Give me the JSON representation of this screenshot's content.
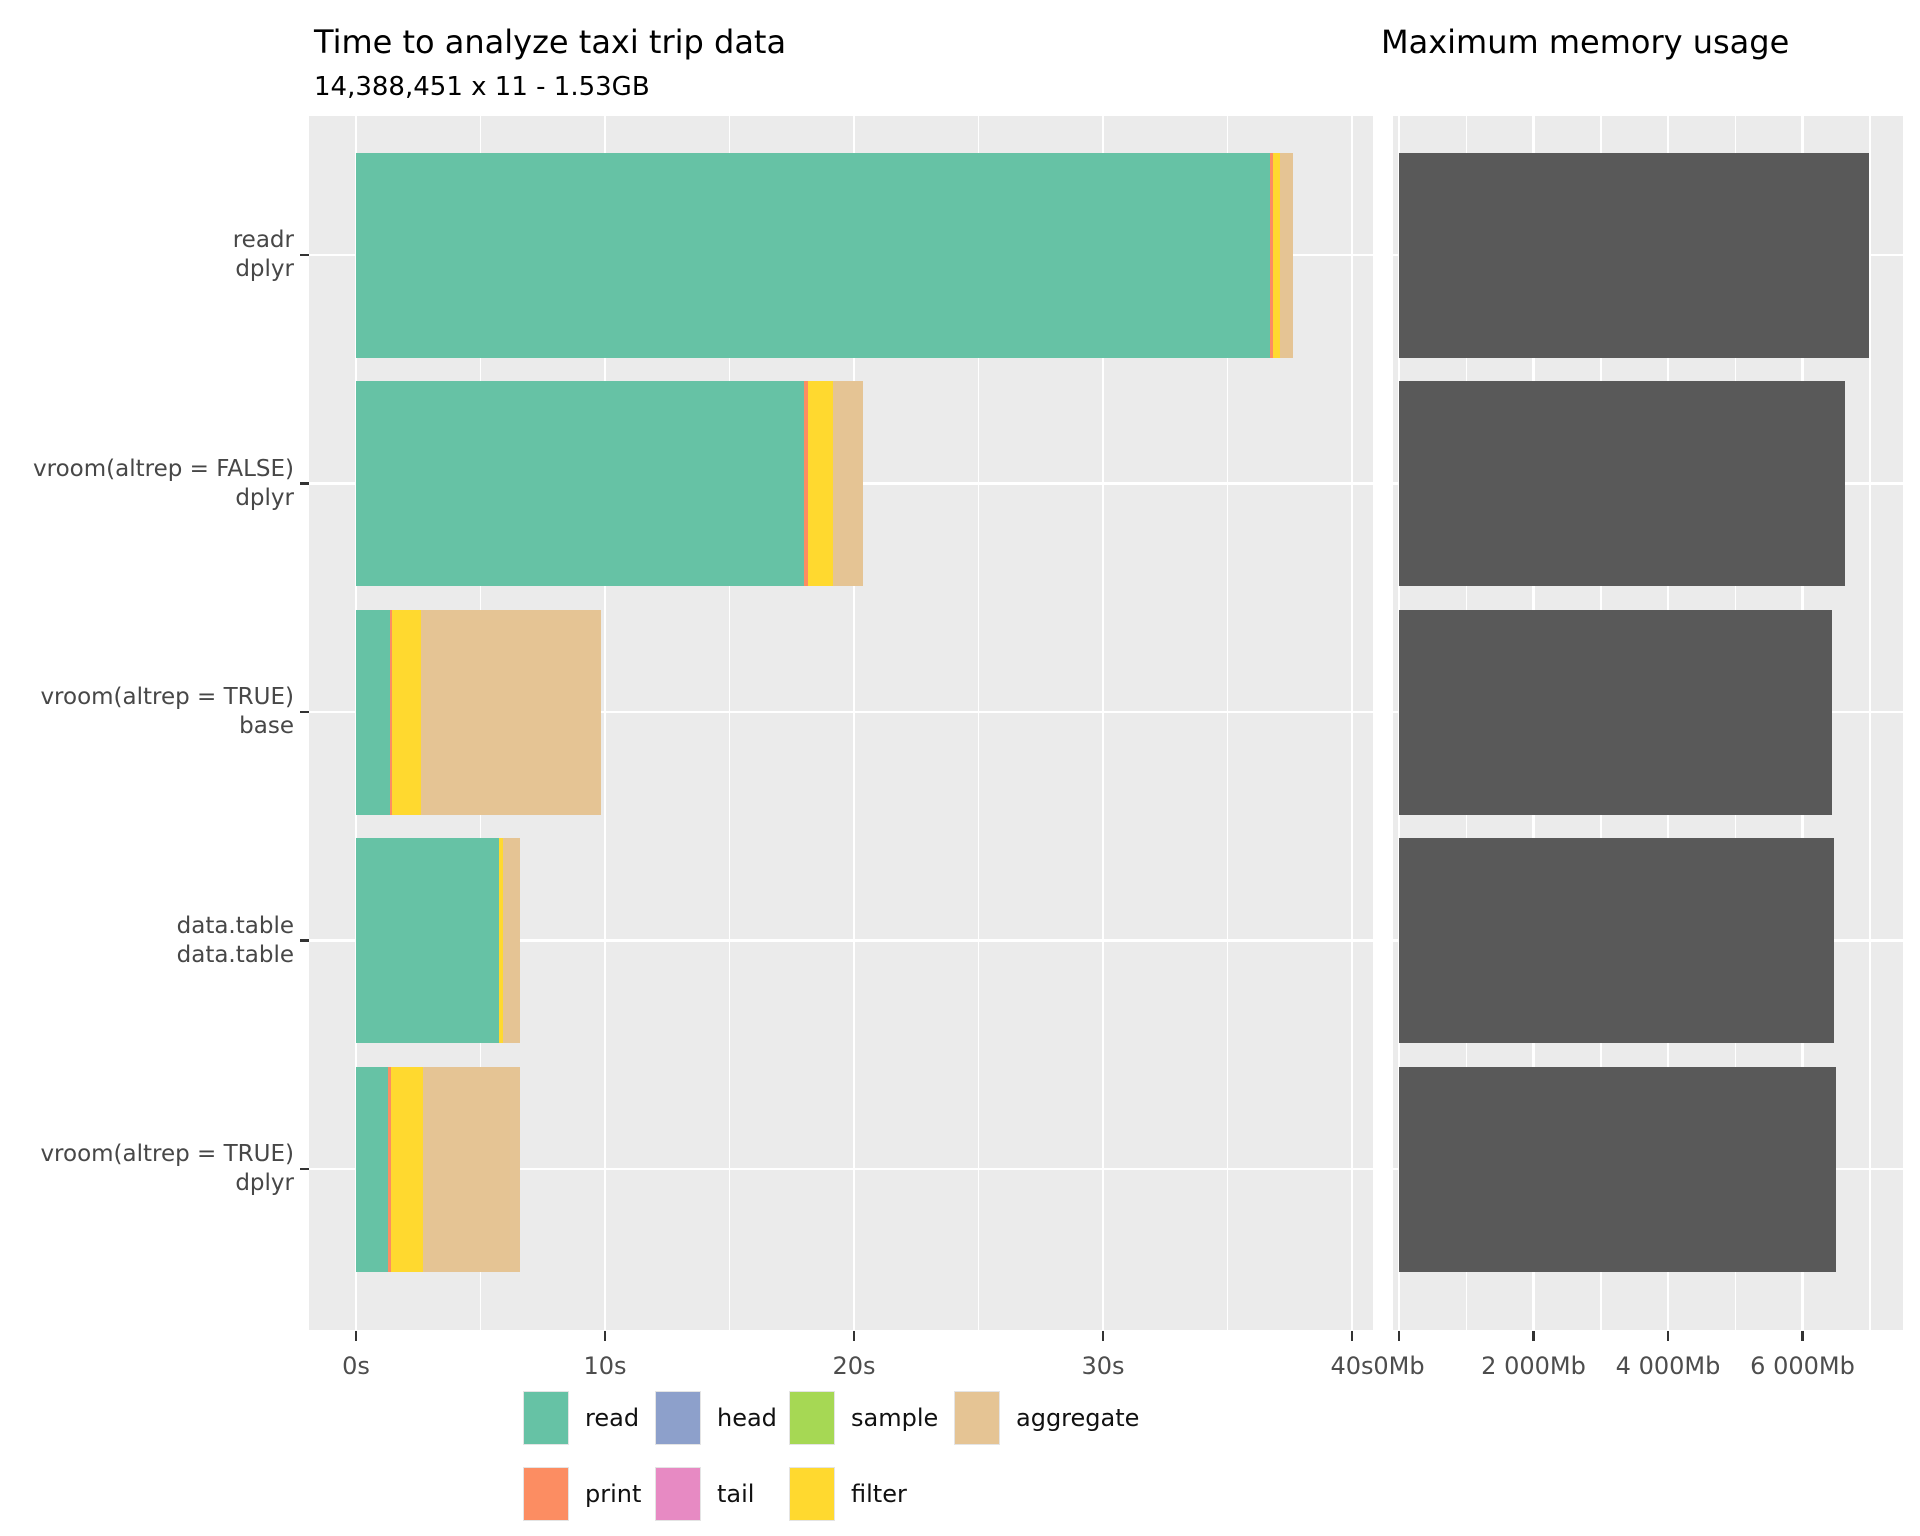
{
  "palette": {
    "read": "#66C2A5",
    "print": "#FC8D62",
    "head": "#8DA0CB",
    "tail": "#E78AC3",
    "sample": "#A6D854",
    "filter": "#FFD92F",
    "aggregate": "#E5C494",
    "memory_bar": "#595959",
    "panel_bg": "#EBEBEB",
    "gridline": "#FFFFFF",
    "axis_text": "#4D4D4D",
    "tick_mark": "#333333"
  },
  "chart_data": [
    {
      "type": "bar",
      "orientation": "horizontal",
      "stacked": true,
      "title": "Time to analyze taxi trip data",
      "subtitle": "14,388,451 x 11 - 1.53GB",
      "categories": [
        [
          "readr",
          "dplyr"
        ],
        [
          "vroom(altrep = FALSE)",
          "dplyr"
        ],
        [
          "vroom(altrep = TRUE)",
          "base"
        ],
        [
          "data.table",
          "data.table"
        ],
        [
          "vroom(altrep = TRUE)",
          "dplyr"
        ]
      ],
      "series": [
        {
          "name": "read",
          "values": [
            36.7,
            18.0,
            1.35,
            5.75,
            1.3
          ]
        },
        {
          "name": "print",
          "values": [
            0.12,
            0.15,
            0.1,
            0,
            0.1
          ]
        },
        {
          "name": "head",
          "values": [
            0,
            0,
            0,
            0,
            0
          ]
        },
        {
          "name": "tail",
          "values": [
            0,
            0,
            0,
            0,
            0
          ]
        },
        {
          "name": "sample",
          "values": [
            0,
            0,
            0,
            0,
            0
          ]
        },
        {
          "name": "filter",
          "values": [
            0.3,
            1.0,
            1.15,
            0.15,
            1.3
          ]
        },
        {
          "name": "aggregate",
          "values": [
            0.5,
            1.2,
            7.25,
            0.7,
            3.9
          ]
        }
      ],
      "totals_seconds": [
        37.6,
        20.35,
        9.85,
        6.6,
        6.6
      ],
      "x_ticks": [
        {
          "value": 0,
          "label": "0s"
        },
        {
          "value": 10,
          "label": "10s"
        },
        {
          "value": 20,
          "label": "20s"
        },
        {
          "value": 30,
          "label": "30s"
        },
        {
          "value": 40,
          "label": "40s"
        }
      ],
      "x_minor_ticks": [
        5,
        15,
        25,
        35
      ],
      "xlim": [
        0,
        40.8
      ],
      "grid": true,
      "legend_position": "bottom",
      "legend_rows": [
        [
          "read",
          "head",
          "sample",
          "aggregate"
        ],
        [
          "print",
          "tail",
          "filter"
        ]
      ]
    },
    {
      "type": "bar",
      "orientation": "horizontal",
      "stacked": false,
      "title": "Maximum memory usage",
      "categories": [
        [
          "readr",
          "dplyr"
        ],
        [
          "vroom(altrep = FALSE)",
          "dplyr"
        ],
        [
          "vroom(altrep = TRUE)",
          "base"
        ],
        [
          "data.table",
          "data.table"
        ],
        [
          "vroom(altrep = TRUE)",
          "dplyr"
        ]
      ],
      "values": [
        6990,
        6630,
        6435,
        6465,
        6495
      ],
      "unit": "Mb",
      "x_ticks": [
        {
          "value": 0,
          "label": "0Mb"
        },
        {
          "value": 2000,
          "label": "2 000Mb"
        },
        {
          "value": 4000,
          "label": "4 000Mb"
        },
        {
          "value": 6000,
          "label": "6 000Mb"
        }
      ],
      "x_minor_ticks": [
        1000,
        3000,
        5000,
        7000
      ],
      "xlim": [
        0,
        7494
      ],
      "grid": true
    }
  ]
}
